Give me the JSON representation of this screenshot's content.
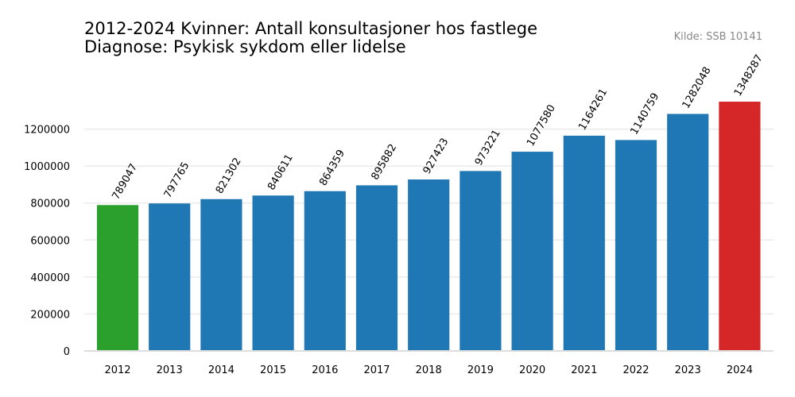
{
  "chart_data": {
    "type": "bar",
    "title": "2012-2024 Kvinner: Antall konsultasjoner hos fastlege",
    "subtitle": "Diagnose: Psykisk sykdom eller lidelse",
    "source": "Kilde: SSB 10141",
    "categories": [
      "2012",
      "2013",
      "2014",
      "2015",
      "2016",
      "2017",
      "2018",
      "2019",
      "2020",
      "2021",
      "2022",
      "2023",
      "2024"
    ],
    "values": [
      789047,
      797765,
      821302,
      840611,
      864359,
      895882,
      927423,
      973221,
      1077580,
      1164261,
      1140759,
      1282048,
      1348287
    ],
    "colors": [
      "#2ca02c",
      "#1f77b4",
      "#1f77b4",
      "#1f77b4",
      "#1f77b4",
      "#1f77b4",
      "#1f77b4",
      "#1f77b4",
      "#1f77b4",
      "#1f77b4",
      "#1f77b4",
      "#1f77b4",
      "#d62728"
    ],
    "ylim": [
      0,
      1400000
    ],
    "yticks": [
      0,
      200000,
      400000,
      600000,
      800000,
      1000000,
      1200000
    ],
    "grid": true
  }
}
